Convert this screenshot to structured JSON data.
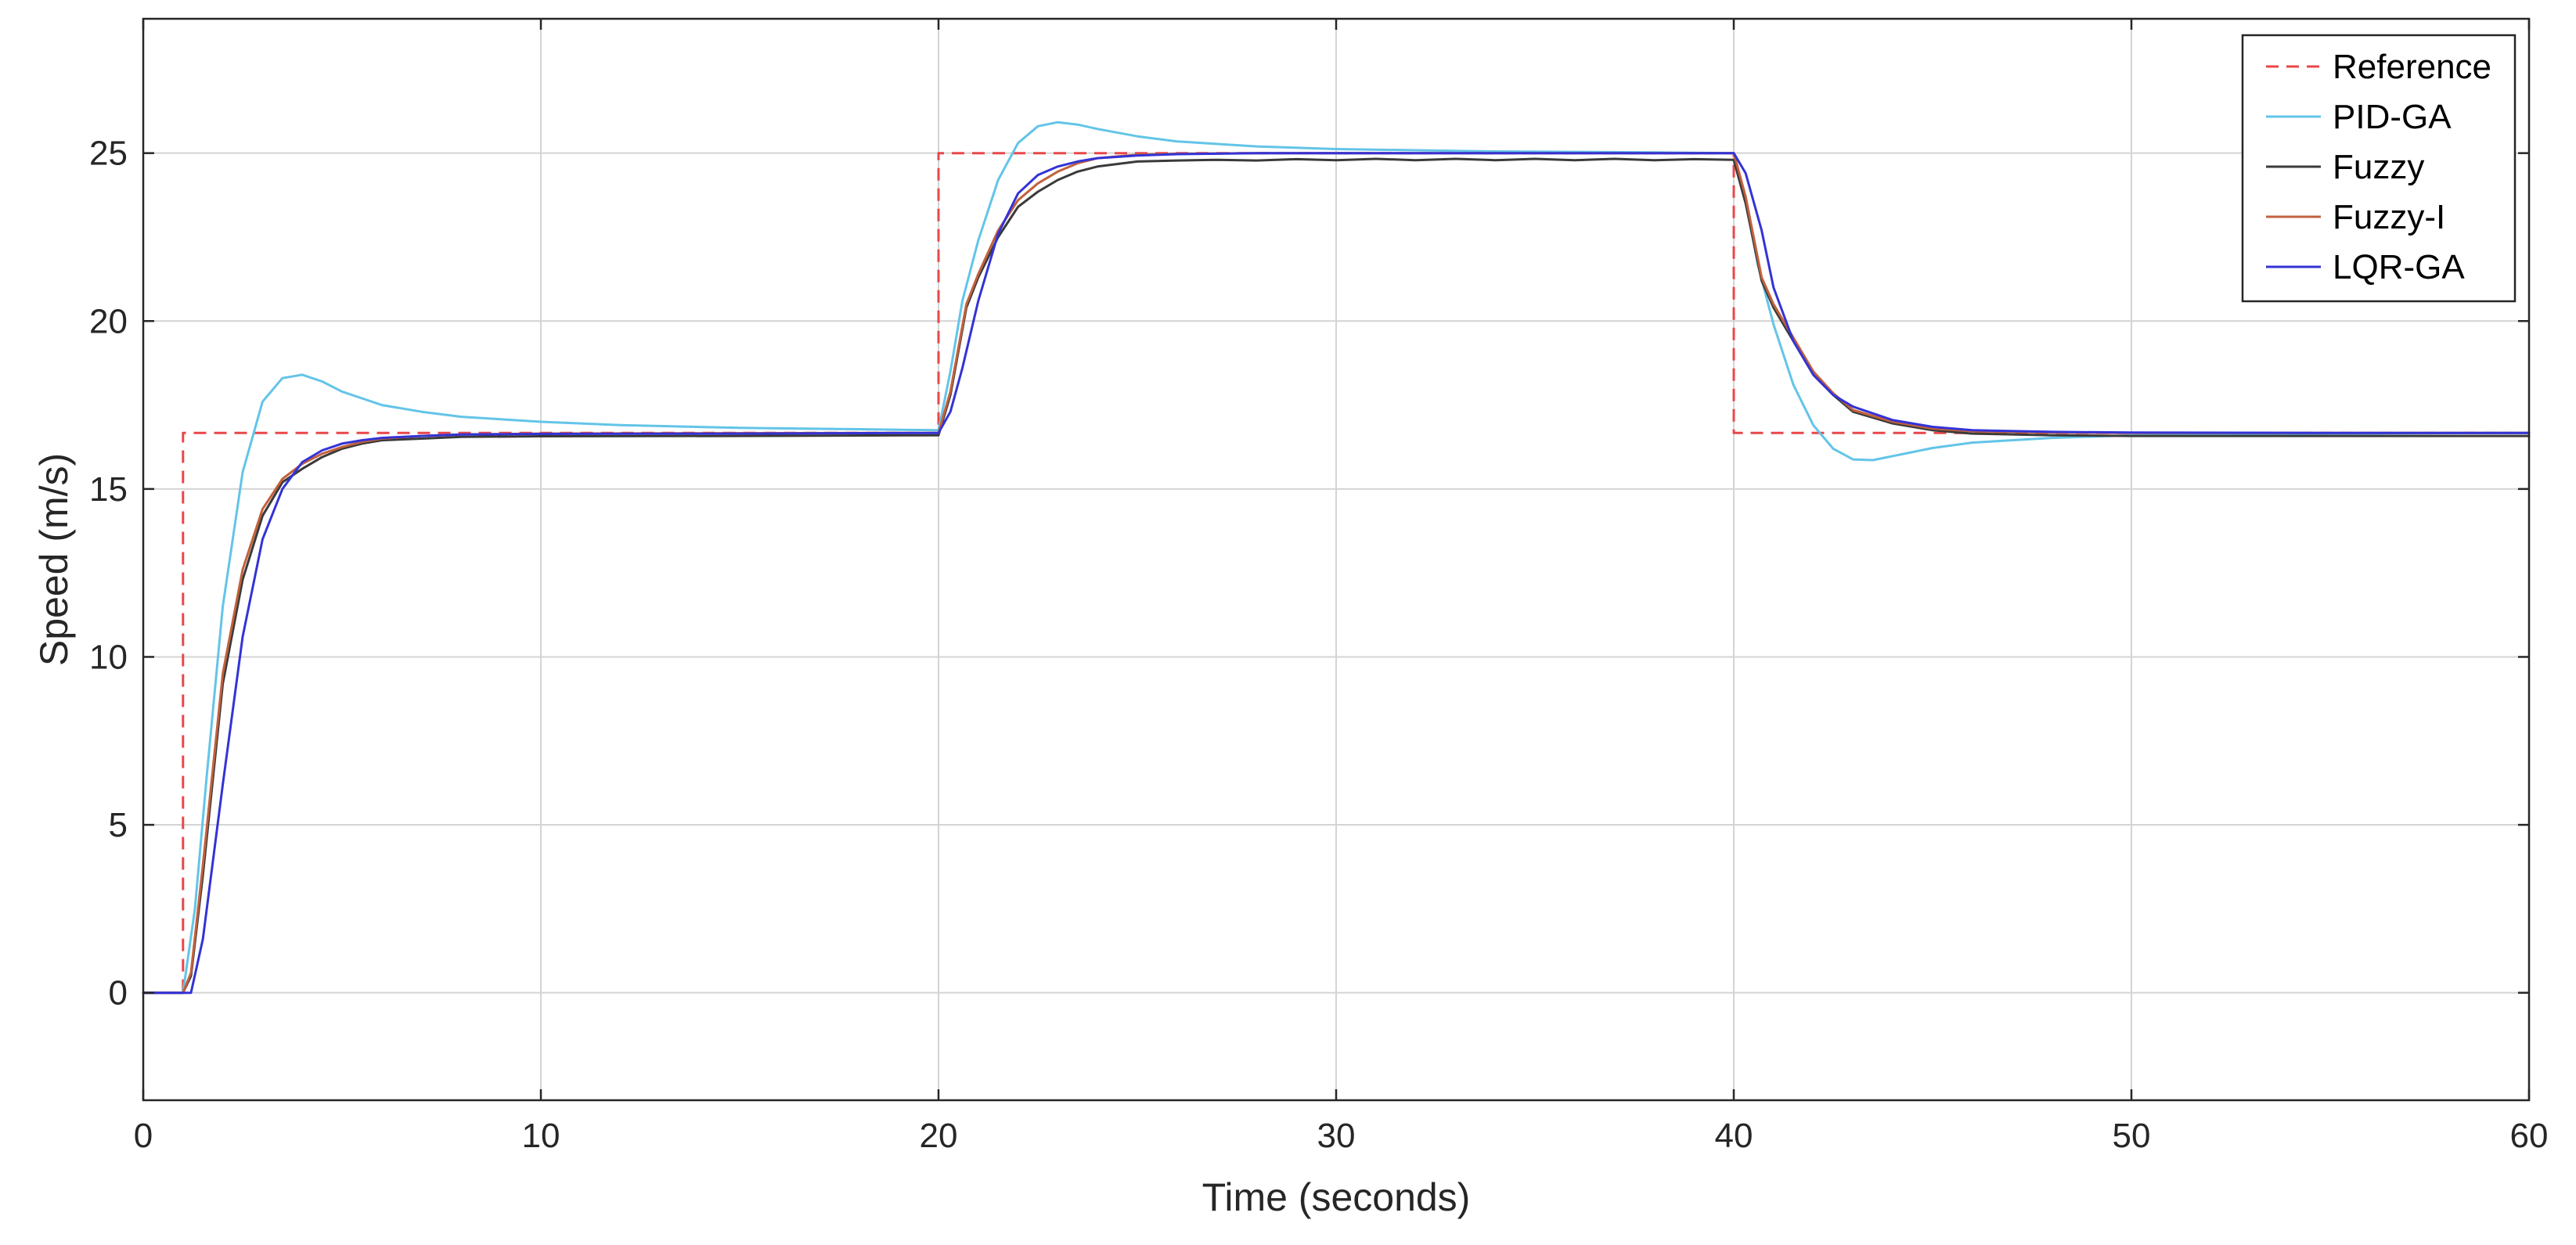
{
  "chart_data": {
    "type": "line",
    "xlabel": "Time (seconds)",
    "ylabel": "Speed (m/s)",
    "xlim": [
      0,
      60
    ],
    "ylim": [
      -3.2,
      29
    ],
    "xticks": [
      0,
      10,
      20,
      30,
      40,
      50,
      60
    ],
    "yticks": [
      0,
      5,
      10,
      15,
      20,
      25
    ],
    "grid": true,
    "legend_position": "top-right",
    "series": [
      {
        "name": "Reference",
        "color": "#e8474a",
        "dash": true,
        "x": [
          0,
          1,
          1,
          20,
          20,
          40,
          40,
          60
        ],
        "y": [
          0,
          0,
          16.67,
          16.67,
          25,
          25,
          16.67,
          16.67
        ]
      },
      {
        "name": "PID-GA",
        "color": "#63c4e8",
        "x": [
          0,
          1,
          1.3,
          1.6,
          2,
          2.5,
          3,
          3.5,
          4,
          4.5,
          5,
          6,
          7,
          8,
          10,
          12,
          15,
          18,
          20,
          20.3,
          20.6,
          21,
          21.5,
          22,
          22.5,
          23,
          23.5,
          24,
          25,
          26,
          28,
          30,
          34,
          38,
          40,
          40.3,
          40.6,
          41,
          41.5,
          42,
          42.5,
          43,
          43.5,
          44,
          45,
          46,
          48,
          50,
          55,
          60
        ],
        "y": [
          0,
          0,
          2.5,
          6.5,
          11.5,
          15.5,
          17.6,
          18.3,
          18.4,
          18.2,
          17.9,
          17.5,
          17.3,
          17.15,
          17.0,
          16.9,
          16.82,
          16.78,
          16.75,
          18.5,
          20.6,
          22.4,
          24.2,
          25.3,
          25.8,
          25.92,
          25.85,
          25.72,
          25.5,
          25.35,
          25.2,
          25.12,
          25.05,
          25.02,
          25.0,
          23.6,
          21.7,
          19.9,
          18.1,
          16.9,
          16.2,
          15.88,
          15.86,
          15.98,
          16.22,
          16.38,
          16.52,
          16.6,
          16.65,
          16.67
        ]
      },
      {
        "name": "Fuzzy",
        "color": "#3a3a3a",
        "x": [
          0,
          1,
          1.2,
          1.5,
          2,
          2.5,
          3,
          3.5,
          4,
          4.5,
          5,
          5.5,
          6,
          7,
          8,
          10,
          15,
          20,
          20.3,
          20.7,
          21,
          21.5,
          22,
          22.5,
          23,
          23.5,
          24,
          25,
          26,
          27,
          28,
          29,
          30,
          31,
          32,
          33,
          34,
          35,
          36,
          37,
          38,
          39,
          40,
          40.3,
          40.7,
          41,
          41.5,
          42,
          42.5,
          43,
          44,
          45,
          46,
          48,
          50,
          55,
          60
        ],
        "y": [
          0,
          0,
          0.5,
          3.5,
          9.2,
          12.3,
          14.2,
          15.2,
          15.6,
          15.95,
          16.2,
          16.35,
          16.45,
          16.5,
          16.55,
          16.57,
          16.58,
          16.6,
          17.8,
          20.4,
          21.3,
          22.5,
          23.4,
          23.85,
          24.2,
          24.45,
          24.6,
          24.75,
          24.78,
          24.8,
          24.78,
          24.82,
          24.79,
          24.83,
          24.79,
          24.83,
          24.79,
          24.83,
          24.79,
          24.83,
          24.79,
          24.82,
          24.8,
          23.5,
          21.2,
          20.4,
          19.4,
          18.4,
          17.8,
          17.3,
          16.95,
          16.75,
          16.65,
          16.6,
          16.58,
          16.58,
          16.58
        ]
      },
      {
        "name": "Fuzzy-I",
        "color": "#c2613d",
        "x": [
          0,
          1,
          1.2,
          1.5,
          2,
          2.5,
          3,
          3.5,
          4,
          4.5,
          5,
          5.5,
          6,
          7,
          8,
          10,
          15,
          20,
          20.3,
          20.7,
          21,
          21.5,
          22,
          22.5,
          23,
          23.5,
          24,
          25,
          26,
          28,
          30,
          35,
          40,
          40.3,
          40.7,
          41,
          41.5,
          42,
          42.5,
          43,
          44,
          45,
          46,
          48,
          50,
          55,
          60
        ],
        "y": [
          0,
          0,
          0.6,
          3.8,
          9.5,
          12.6,
          14.4,
          15.3,
          15.75,
          16.05,
          16.25,
          16.4,
          16.5,
          16.58,
          16.62,
          16.65,
          16.66,
          16.67,
          17.9,
          20.5,
          21.4,
          22.7,
          23.6,
          24.1,
          24.45,
          24.7,
          24.85,
          24.95,
          24.98,
          25.0,
          25.0,
          25.0,
          25.0,
          23.7,
          21.3,
          20.5,
          19.5,
          18.5,
          17.85,
          17.35,
          17.0,
          16.8,
          16.72,
          16.68,
          16.67,
          16.67,
          16.67
        ]
      },
      {
        "name": "LQR-GA",
        "color": "#3333d6",
        "x": [
          0,
          1.2,
          1.5,
          2,
          2.5,
          3,
          3.5,
          4,
          4.5,
          5,
          5.5,
          6,
          7,
          8,
          10,
          15,
          20,
          20.3,
          20.6,
          21,
          21.5,
          22,
          22.5,
          23,
          23.5,
          24,
          25,
          26,
          28,
          30,
          35,
          40,
          40.3,
          40.7,
          41,
          41.5,
          42,
          42.5,
          43,
          44,
          45,
          46,
          48,
          50,
          55,
          60
        ],
        "y": [
          0,
          0,
          1.6,
          6.2,
          10.6,
          13.5,
          15.0,
          15.8,
          16.15,
          16.35,
          16.45,
          16.52,
          16.58,
          16.62,
          16.64,
          16.65,
          16.67,
          17.3,
          18.6,
          20.6,
          22.6,
          23.8,
          24.35,
          24.6,
          24.75,
          24.85,
          24.93,
          24.97,
          25.0,
          25.0,
          25.0,
          25.0,
          24.4,
          22.7,
          21.0,
          19.4,
          18.4,
          17.8,
          17.45,
          17.05,
          16.85,
          16.75,
          16.7,
          16.68,
          16.67,
          16.67
        ]
      }
    ]
  }
}
